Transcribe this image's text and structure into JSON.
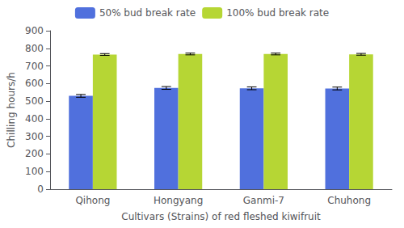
{
  "chart_data": {
    "type": "bar",
    "categories": [
      "Qihong",
      "Hongyang",
      "Ganmi-7",
      "Chuhong"
    ],
    "series": [
      {
        "name": "50% bud break rate",
        "values": [
          530,
          575,
          573,
          572
        ],
        "errors": [
          8,
          8,
          8,
          8
        ]
      },
      {
        "name": "100% bud break rate",
        "values": [
          765,
          768,
          768,
          766
        ],
        "errors": [
          5,
          5,
          5,
          5
        ]
      }
    ],
    "xlabel": "Cultivars (Strains) of red fleshed kiwifruit",
    "ylabel": "Chilling hours/h",
    "ylim": [
      0,
      900
    ],
    "yticks": [
      0,
      100,
      200,
      300,
      400,
      500,
      600,
      700,
      800,
      900
    ],
    "legend": "top",
    "grid": false
  }
}
